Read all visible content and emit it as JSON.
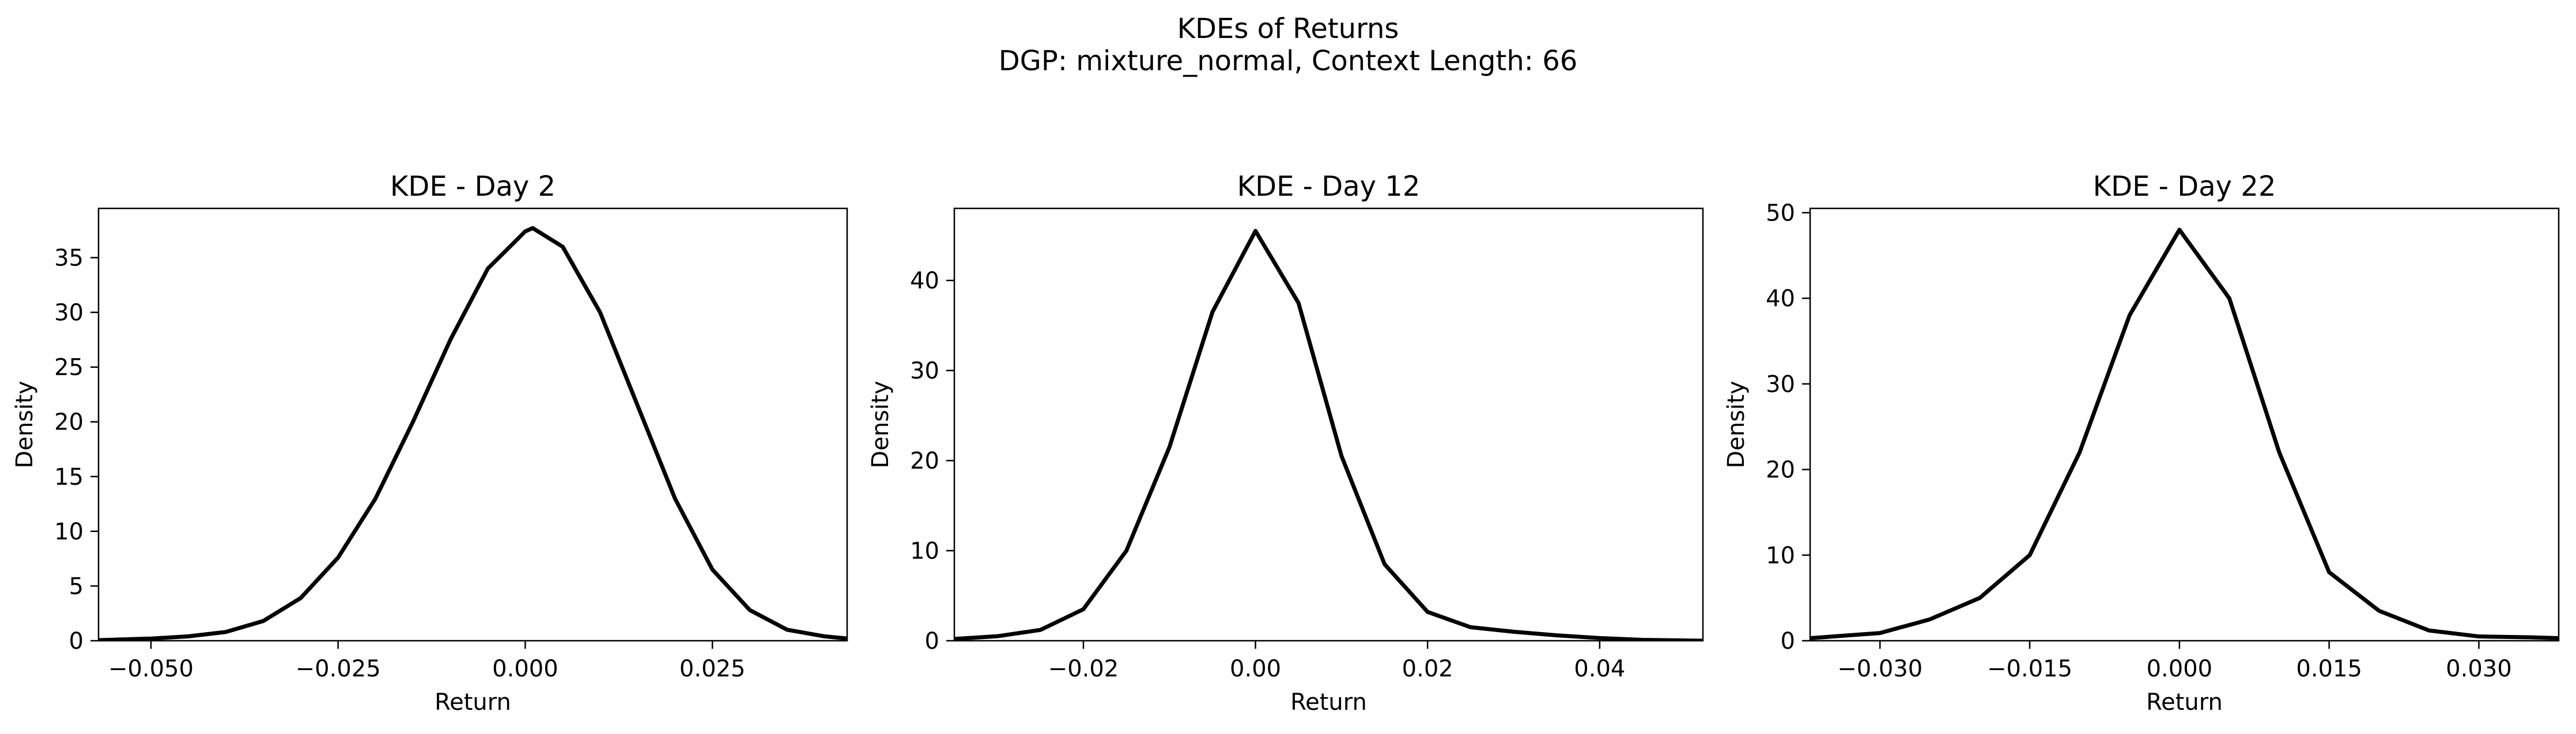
{
  "figure": {
    "title_line1": "KDEs of Returns",
    "title_line2": "DGP: mixture_normal, Context Length: 66"
  },
  "chart_data": [
    {
      "type": "line",
      "title": "KDE - Day 2",
      "xlabel": "Return",
      "ylabel": "Density",
      "xlim": [
        -0.057,
        0.043
      ],
      "ylim": [
        0,
        39.5
      ],
      "xticks": [
        -0.05,
        -0.025,
        0.0,
        0.025
      ],
      "xtick_labels": [
        "−0.050",
        "−0.025",
        "0.000",
        "0.025"
      ],
      "yticks": [
        0,
        5,
        10,
        15,
        20,
        25,
        30,
        35
      ],
      "ytick_labels": [
        "0",
        "5",
        "10",
        "15",
        "20",
        "25",
        "30",
        "35"
      ],
      "grid": false,
      "line_color": "#000000",
      "series": [
        {
          "x": [
            -0.057,
            -0.05,
            -0.045,
            -0.04,
            -0.035,
            -0.03,
            -0.025,
            -0.02,
            -0.015,
            -0.01,
            -0.005,
            0.0,
            0.001,
            0.005,
            0.01,
            0.015,
            0.02,
            0.025,
            0.03,
            0.035,
            0.04,
            0.043
          ],
          "y": [
            0.05,
            0.2,
            0.4,
            0.8,
            1.8,
            3.9,
            7.6,
            13.0,
            20.0,
            27.5,
            34.0,
            37.4,
            37.7,
            36.0,
            30.0,
            21.5,
            13.0,
            6.5,
            2.8,
            1.0,
            0.4,
            0.2
          ]
        }
      ]
    },
    {
      "type": "line",
      "title": "KDE - Day 12",
      "xlabel": "Return",
      "ylabel": "Density",
      "xlim": [
        -0.035,
        0.052
      ],
      "ylim": [
        0,
        48
      ],
      "xticks": [
        -0.02,
        0.0,
        0.02,
        0.04
      ],
      "xtick_labels": [
        "−0.02",
        "0.00",
        "0.02",
        "0.04"
      ],
      "yticks": [
        0,
        10,
        20,
        30,
        40
      ],
      "ytick_labels": [
        "0",
        "10",
        "20",
        "30",
        "40"
      ],
      "grid": false,
      "line_color": "#000000",
      "series": [
        {
          "x": [
            -0.035,
            -0.03,
            -0.025,
            -0.02,
            -0.015,
            -0.01,
            -0.005,
            0.0,
            0.005,
            0.01,
            0.015,
            0.02,
            0.025,
            0.03,
            0.035,
            0.04,
            0.045,
            0.052
          ],
          "y": [
            0.2,
            0.5,
            1.2,
            3.5,
            10.0,
            21.5,
            36.5,
            45.5,
            37.5,
            20.5,
            8.5,
            3.2,
            1.5,
            1.0,
            0.6,
            0.3,
            0.1,
            0.0
          ]
        }
      ]
    },
    {
      "type": "line",
      "title": "KDE - Day 22",
      "xlabel": "Return",
      "ylabel": "Density",
      "xlim": [
        -0.037,
        0.038
      ],
      "ylim": [
        0,
        50.5
      ],
      "xticks": [
        -0.03,
        -0.015,
        0.0,
        0.015,
        0.03
      ],
      "xtick_labels": [
        "−0.030",
        "−0.015",
        "0.000",
        "0.015",
        "0.030"
      ],
      "yticks": [
        0,
        10,
        20,
        30,
        40,
        50
      ],
      "ytick_labels": [
        "0",
        "10",
        "20",
        "30",
        "40",
        "50"
      ],
      "grid": false,
      "line_color": "#000000",
      "series": [
        {
          "x": [
            -0.037,
            -0.03,
            -0.025,
            -0.02,
            -0.015,
            -0.01,
            -0.005,
            0.0,
            0.005,
            0.01,
            0.015,
            0.02,
            0.025,
            0.03,
            0.035,
            0.038
          ],
          "y": [
            0.3,
            0.9,
            2.5,
            5.0,
            10.0,
            22.0,
            38.0,
            48.0,
            40.0,
            22.0,
            8.0,
            3.5,
            1.2,
            0.5,
            0.4,
            0.3
          ]
        }
      ]
    }
  ]
}
